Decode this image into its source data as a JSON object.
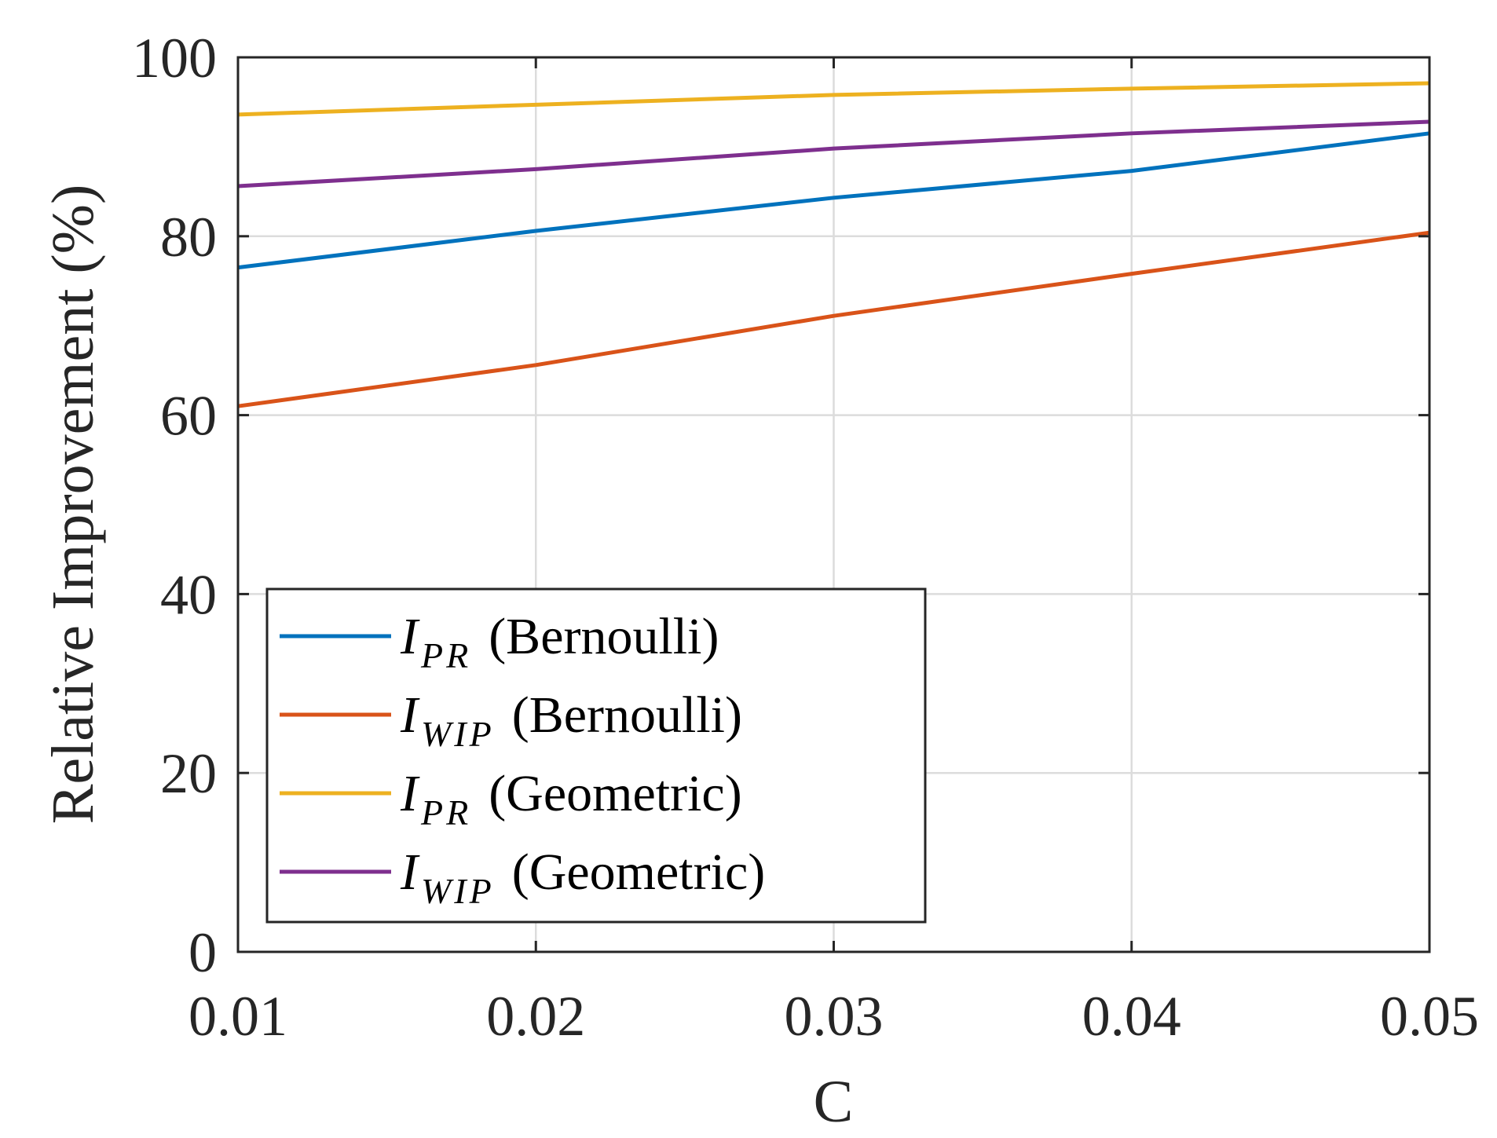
{
  "chart_data": {
    "type": "line",
    "title": "",
    "xlabel": "C",
    "ylabel": "Relative Improvement (%)",
    "x": [
      0.01,
      0.02,
      0.03,
      0.04,
      0.05
    ],
    "xlim": [
      0.01,
      0.05
    ],
    "ylim": [
      0,
      100
    ],
    "xticks": [
      "0.01",
      "0.02",
      "0.03",
      "0.04",
      "0.05"
    ],
    "yticks": [
      "0",
      "20",
      "40",
      "60",
      "80",
      "100"
    ],
    "grid": true,
    "legend_position": "bottom-left",
    "series": [
      {
        "name": "I_PR (Bernoulli)",
        "symbol": "I",
        "subscript": "PR",
        "suffix": "(Bernoulli)",
        "color": "#0072BD",
        "values": [
          76.5,
          80.6,
          84.3,
          87.3,
          91.5
        ]
      },
      {
        "name": "I_WIP (Bernoulli)",
        "symbol": "I",
        "subscript": "WIP",
        "suffix": "(Bernoulli)",
        "color": "#D95319",
        "values": [
          61.0,
          65.6,
          71.1,
          75.8,
          80.4
        ]
      },
      {
        "name": "I_PR (Geometric)",
        "symbol": "I",
        "subscript": "PR",
        "suffix": "(Geometric)",
        "color": "#EDB120",
        "values": [
          93.6,
          94.7,
          95.8,
          96.5,
          97.1
        ]
      },
      {
        "name": "I_WIP (Geometric)",
        "symbol": "I",
        "subscript": "WIP",
        "suffix": "(Geometric)",
        "color": "#7E2F8E",
        "values": [
          85.6,
          87.5,
          89.8,
          91.5,
          92.8
        ]
      }
    ]
  }
}
